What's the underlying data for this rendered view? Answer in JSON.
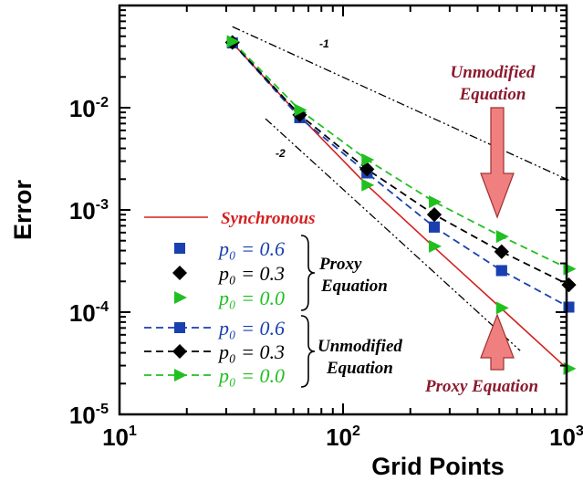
{
  "chart_data": {
    "type": "scatter",
    "xscale": "log",
    "yscale": "log",
    "xlim": [
      10,
      1000
    ],
    "ylim": [
      1e-05,
      0.1
    ],
    "xlabel": "Grid Points",
    "ylabel": "Error",
    "x_ticks": [
      {
        "value": 10,
        "base": "10",
        "exp": "1"
      },
      {
        "value": 100,
        "base": "10",
        "exp": "2"
      },
      {
        "value": 1000,
        "base": "10",
        "exp": "3"
      }
    ],
    "y_ticks": [
      {
        "value": 0.01,
        "base": "10",
        "exp": "-2"
      },
      {
        "value": 0.001,
        "base": "10",
        "exp": "-3"
      },
      {
        "value": 0.0001,
        "base": "10",
        "exp": "-4"
      },
      {
        "value": 1e-05,
        "base": "10",
        "exp": "-5"
      }
    ],
    "x": [
      32,
      64,
      128,
      256,
      512,
      1024
    ],
    "series": [
      {
        "name": "Synchronous",
        "style": "line",
        "color": "#d42020",
        "values": [
          0.043,
          0.0083,
          0.00175,
          0.00043,
          0.000108,
          2.7e-05
        ]
      },
      {
        "label_text": "p₀ = 0.6",
        "group": "Proxy Equation",
        "style": "markers",
        "marker": "square",
        "color": "#1a3fb0",
        "values": [
          0.043,
          0.008,
          0.0023,
          0.00068,
          0.000255,
          0.000112
        ]
      },
      {
        "label_text": "p₀ = 0.3",
        "group": "Proxy Equation",
        "style": "markers",
        "marker": "diamond",
        "color": "#000000",
        "values": [
          0.0435,
          0.0085,
          0.0025,
          0.0009,
          0.00039,
          0.000185
        ]
      },
      {
        "label_text": "p₀ = 0.0",
        "group": "Proxy Equation",
        "style": "markers",
        "marker": "triangle",
        "color": "#20c020",
        "values": [
          0.044,
          0.009,
          0.00175,
          0.00044,
          0.00011,
          2.8e-05
        ]
      },
      {
        "label_text": "p₀ = 0.6",
        "group": "Unmodified Equation",
        "style": "dashed",
        "marker": "square",
        "color": "#1a3fb0",
        "values": [
          0.043,
          0.008,
          0.0023,
          0.00068,
          0.000255,
          0.000112
        ]
      },
      {
        "label_text": "p₀ = 0.3",
        "group": "Unmodified Equation",
        "style": "dashed",
        "marker": "diamond",
        "color": "#000000",
        "values": [
          0.0435,
          0.0085,
          0.0025,
          0.0009,
          0.00039,
          0.000185
        ]
      },
      {
        "label_text": "p₀ = 0.0",
        "group": "Unmodified Equation",
        "style": "dashed",
        "marker": "triangle",
        "color": "#20c020",
        "values": [
          0.0445,
          0.0095,
          0.0031,
          0.0012,
          0.00055,
          0.000265
        ]
      }
    ],
    "reference_lines": [
      {
        "label": "-1",
        "x": [
          32,
          1024
        ],
        "y": [
          0.062,
          0.00195
        ]
      },
      {
        "label": "-2",
        "x": [
          45,
          620
        ],
        "y": [
          0.0078,
          4.2e-05
        ]
      }
    ],
    "annotations": [
      {
        "lines": [
          "Unmodified",
          "Equation"
        ],
        "color": "#8b1a2e"
      },
      {
        "lines": [
          "Proxy Equation"
        ],
        "color": "#8b1a2e"
      }
    ],
    "legend": {
      "placement": "lower-left",
      "synchronous_label": "Synchronous",
      "proxy_group_lines": [
        "Proxy",
        "Equation"
      ],
      "unmodified_group_lines": [
        "Unmodified",
        "Equation"
      ]
    },
    "arrow_color": "#f08080"
  }
}
